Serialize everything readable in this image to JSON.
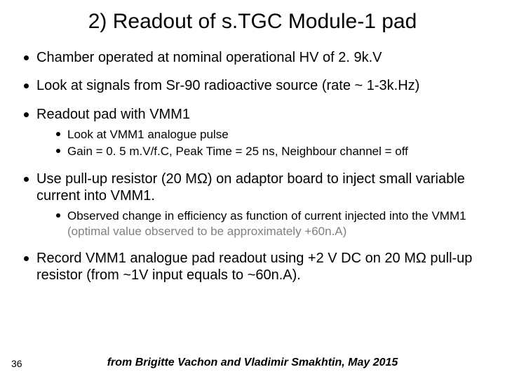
{
  "title": "2) Readout of s.TGC Module-1 pad",
  "bullets": {
    "b1": "Chamber operated at nominal operational HV of 2. 9k.V",
    "b2": "Look at signals from Sr-90 radioactive source (rate ~ 1-3k.Hz)",
    "b3": "Readout pad with VMM1",
    "b3_sub1": "Look at VMM1 analogue pulse",
    "b3_sub2": "Gain = 0. 5 m.V/f.C, Peak Time = 25 ns, Neighbour channel = off",
    "b4": "Use pull-up resistor (20 MΩ) on adaptor board to inject small variable current into VMM1.",
    "b4_sub1a": "Observed change in efficiency as function of current injected into the VMM1 ",
    "b4_sub1b": "(optimal value observed to be approximately +60n.A)",
    "b5": "Record VMM1 analogue pad readout using +2 V DC on 20 MΩ pull-up resistor (from ~1V input equals to ~60n.A)."
  },
  "pagenum": "36",
  "credit": "from Brigitte Vachon and Vladimir Smakhtin, May 2015"
}
